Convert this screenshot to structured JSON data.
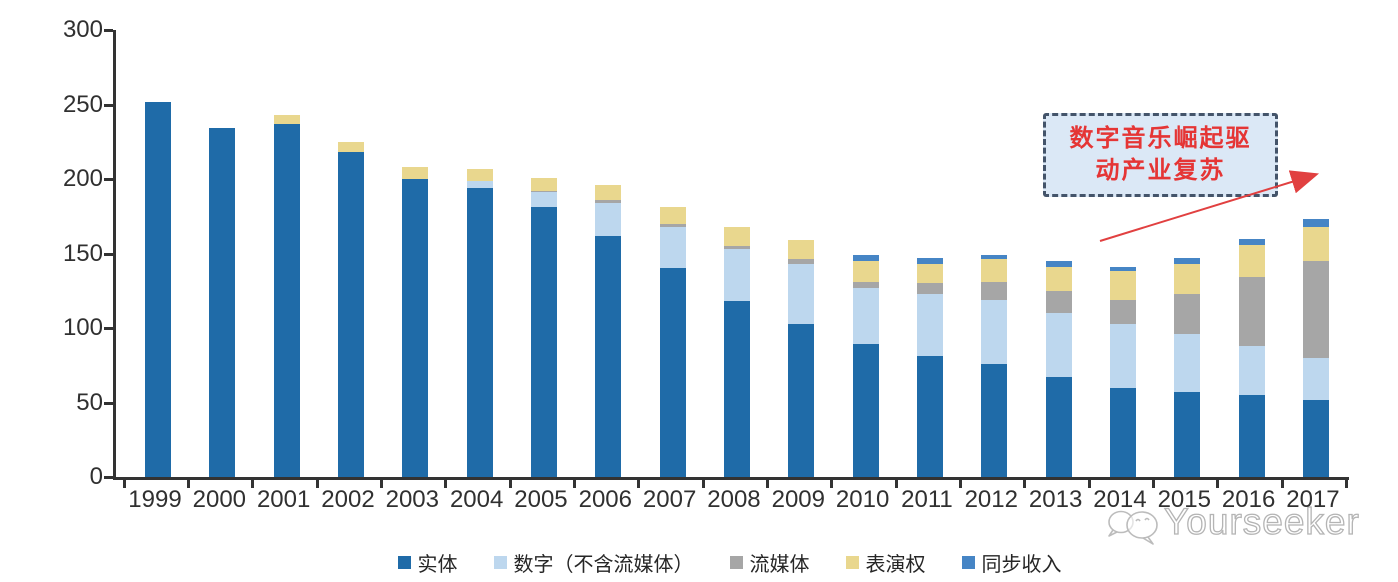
{
  "chart_data": {
    "type": "bar",
    "stacked": true,
    "categories": [
      "1999",
      "2000",
      "2001",
      "2002",
      "2003",
      "2004",
      "2005",
      "2006",
      "2007",
      "2008",
      "2009",
      "2010",
      "2011",
      "2012",
      "2013",
      "2014",
      "2015",
      "2016",
      "2017"
    ],
    "series": [
      {
        "key": "physical",
        "name": "实体",
        "color": "#1F6BA8",
        "values": [
          252,
          234,
          237,
          218,
          200,
          194,
          181,
          162,
          140,
          118,
          103,
          89,
          81,
          76,
          67,
          60,
          57,
          55,
          52
        ]
      },
      {
        "key": "digital-excl-streaming",
        "name": "数字（不含流媒体）",
        "color": "#BDD7EE",
        "values": [
          0,
          0,
          0,
          0,
          0,
          5,
          10,
          22,
          28,
          35,
          40,
          38,
          42,
          43,
          43,
          43,
          39,
          33,
          28
        ]
      },
      {
        "key": "streaming",
        "name": "流媒体",
        "color": "#A6A6A6",
        "values": [
          0,
          0,
          0,
          0,
          0,
          0,
          1,
          2,
          2,
          2,
          3,
          4,
          7,
          12,
          15,
          16,
          27,
          46,
          65
        ]
      },
      {
        "key": "performance-rights",
        "name": "表演权",
        "color": "#E9D78E",
        "values": [
          0,
          0,
          6,
          7,
          8,
          8,
          9,
          10,
          11,
          13,
          13,
          14,
          13,
          15,
          16,
          19,
          20,
          22,
          23
        ]
      },
      {
        "key": "sync-revenue",
        "name": "同步收入",
        "color": "#4685C5",
        "values": [
          0,
          0,
          0,
          0,
          0,
          0,
          0,
          0,
          0,
          0,
          0,
          4,
          4,
          3,
          4,
          3,
          4,
          4,
          5
        ]
      }
    ],
    "ylim": [
      0,
      300
    ],
    "yticks": [
      0,
      50,
      100,
      150,
      200,
      250,
      300
    ],
    "grid": false,
    "legend_position": "bottom"
  },
  "annotation": {
    "line1": "数字音乐崛起驱",
    "line2": "动产业复苏"
  },
  "watermark": {
    "text": "Yourseeker"
  },
  "colors": {
    "axis": "#333333",
    "annotation_border": "#44546A",
    "annotation_fill": "#DBE8F6",
    "annotation_text": "#E53535",
    "arrow": "#E14040",
    "watermark": "#B4B4B4"
  }
}
